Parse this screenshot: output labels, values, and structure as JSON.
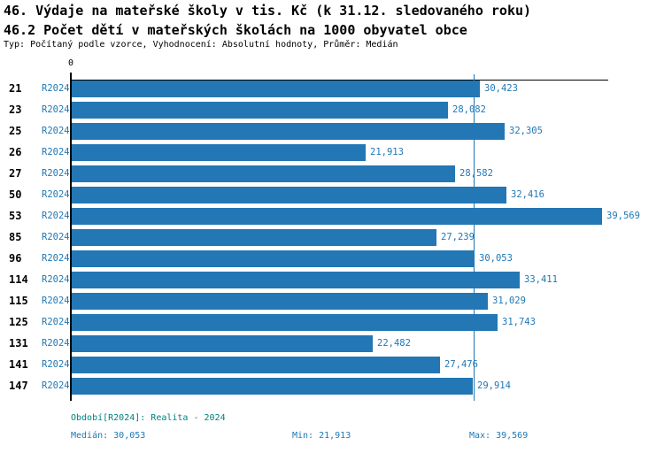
{
  "title_line1": "46. Výdaje na mateřské školy v tis. Kč (k 31.12. sledovaného roku)",
  "title_line2": "46.2 Počet dětí v mateřských školách na 1000 obyvatel obce",
  "subtitle": "Typ: Počítaný podle vzorce, Vyhodnocení: Absolutní hodnoty, Průměr: Medián",
  "chart_data": {
    "type": "bar",
    "orientation": "horizontal",
    "title": "46. Výdaje na mateřské školy v tis. Kč (k 31.12. sledovaného roku)",
    "subtitle": "46.2 Počet dětí v mateřských školách na 1000 obyvatel obce",
    "categories": [
      "21",
      "23",
      "25",
      "26",
      "27",
      "50",
      "53",
      "85",
      "96",
      "114",
      "115",
      "125",
      "131",
      "141",
      "147"
    ],
    "series_label": "R2024",
    "values": [
      30423,
      28082,
      32305,
      21913,
      28582,
      32416,
      39569,
      27239,
      30053,
      33411,
      31029,
      31743,
      22482,
      27476,
      29914
    ],
    "value_labels": [
      "30,423",
      "28,082",
      "32,305",
      "21,913",
      "28,582",
      "32,416",
      "39,569",
      "27,239",
      "30,053",
      "33,411",
      "31,029",
      "31,743",
      "22,482",
      "27,476",
      "29,914"
    ],
    "axis_origin_label": "0",
    "xlim": [
      0,
      40100
    ],
    "median_value": 30053,
    "grid": false,
    "legend_position": "none",
    "bar_color": "#2277b4",
    "median_line_color": "#1f77b4"
  },
  "footer": {
    "period": "Období[R2024]: Realita - 2024",
    "median": "Medián: 30,053",
    "min": "Min: 21,913",
    "max": "Max: 39,569"
  },
  "colors": {
    "text": "#000000",
    "blue_label": "#1f77b4",
    "teal_label": "#008080",
    "bar": "#2277b4",
    "background": "#ffffff"
  }
}
